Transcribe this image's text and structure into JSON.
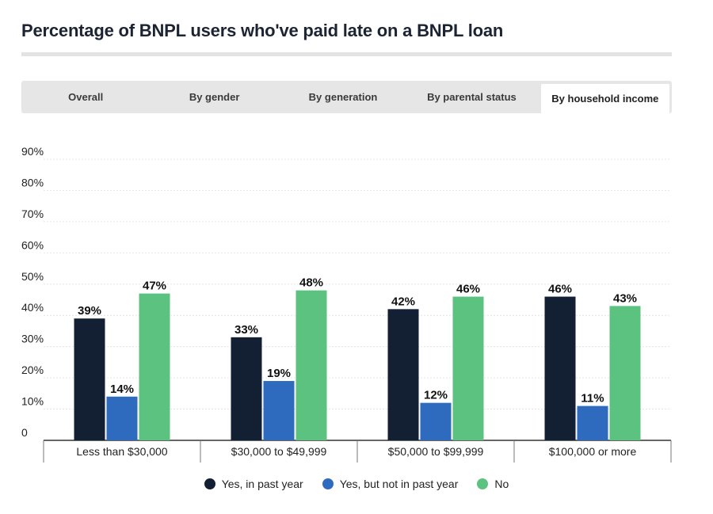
{
  "title": "Percentage of BNPL users who've paid late on a BNPL loan",
  "tabs": [
    {
      "label": "Overall",
      "active": false
    },
    {
      "label": "By gender",
      "active": false
    },
    {
      "label": "By generation",
      "active": false
    },
    {
      "label": "By parental status",
      "active": false
    },
    {
      "label": "By household income",
      "active": true
    }
  ],
  "colors": {
    "series_0": "#131f33",
    "series_1": "#2e6bbf",
    "series_2": "#5cc280"
  },
  "chart_data": {
    "type": "bar",
    "title": "Percentage of BNPL users who've paid late on a BNPL loan",
    "xlabel": "",
    "ylabel": "",
    "categories": [
      "Less than $30,000",
      "$30,000 to $49,999",
      "$50,000 to $99,999",
      "$100,000 or more"
    ],
    "series": [
      {
        "name": "Yes, in past year",
        "values": [
          39,
          33,
          42,
          46
        ]
      },
      {
        "name": "Yes, but not in past year",
        "values": [
          14,
          19,
          12,
          11
        ]
      },
      {
        "name": "No",
        "values": [
          47,
          48,
          46,
          43
        ]
      }
    ],
    "ylim": [
      0,
      90
    ],
    "yticks": [
      0,
      10,
      20,
      30,
      40,
      50,
      60,
      70,
      80,
      90
    ],
    "ytick_labels": [
      "0",
      "10%",
      "20%",
      "30%",
      "40%",
      "50%",
      "60%",
      "70%",
      "80%",
      "90%"
    ],
    "value_suffix": "%",
    "grid": true,
    "legend_position": "bottom"
  }
}
